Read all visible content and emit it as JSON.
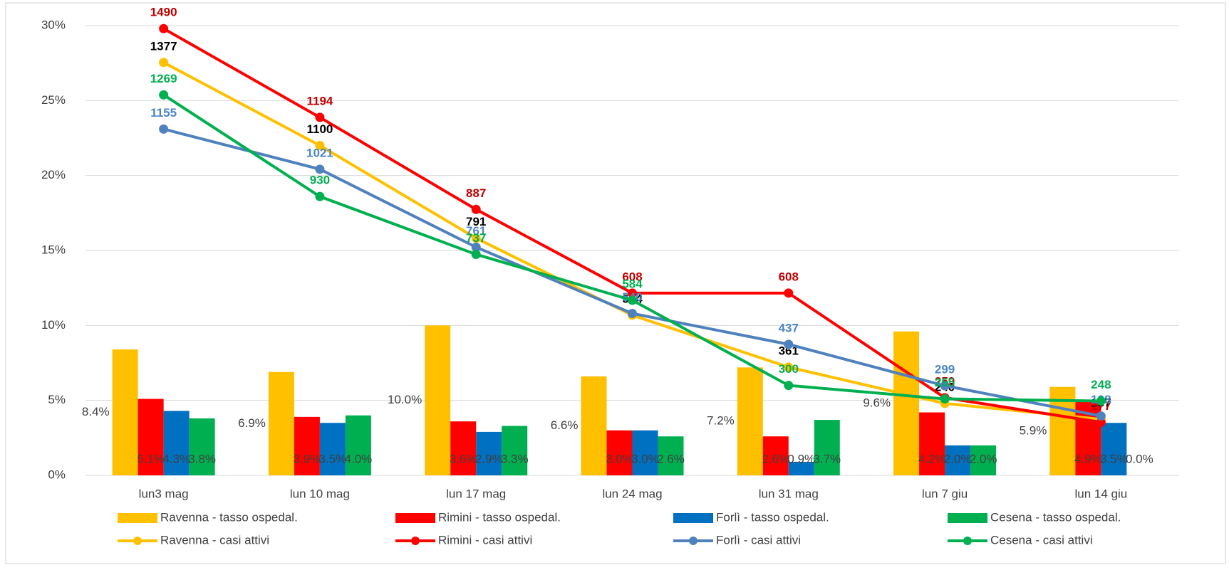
{
  "chart_data": {
    "type": "combo",
    "categories": [
      "lun3 mag",
      "lun 10 mag",
      "lun 17 mag",
      "lun 24 mag",
      "lun 31 mag",
      "lun 7 giu",
      "lun 14 giu"
    ],
    "ylim": [
      0,
      30
    ],
    "yticks": [
      {
        "value": 0,
        "label": "0%"
      },
      {
        "value": 5,
        "label": "5%"
      },
      {
        "value": 10,
        "label": "10%"
      },
      {
        "value": 15,
        "label": "15%"
      },
      {
        "value": 20,
        "label": "20%"
      },
      {
        "value": 25,
        "label": "25%"
      },
      {
        "value": 30,
        "label": "30%"
      }
    ],
    "y2lim": [
      0,
      1500
    ],
    "grid": true,
    "legend": "bottom",
    "series": [
      {
        "name": "Ravenna - tasso ospedal.",
        "type": "bar",
        "color": "#ffc000",
        "values": [
          8.4,
          6.9,
          10.0,
          6.6,
          7.2,
          9.6,
          5.9
        ],
        "value_labels": [
          "8.4%",
          "6.9%",
          "10.0%",
          "6.6%",
          "7.2%",
          "9.6%",
          "5.9%"
        ]
      },
      {
        "name": "Rimini - tasso ospedal.",
        "type": "bar",
        "color": "#ff0000",
        "values": [
          5.1,
          3.9,
          3.6,
          3.0,
          2.6,
          4.2,
          4.9
        ],
        "value_labels": [
          "5.1%",
          "3.9%",
          "3.6%",
          "3.0%",
          "2.6%",
          "4.2%",
          "4.9%"
        ]
      },
      {
        "name": "Forlì - tasso ospedal.",
        "type": "bar",
        "color": "#0070c0",
        "values": [
          4.3,
          3.5,
          2.9,
          3.0,
          0.9,
          2.0,
          3.5
        ],
        "value_labels": [
          "4.3%",
          "3.5%",
          "2.9%",
          "3.0%",
          "0.9%",
          "2.0%",
          "3.5%"
        ]
      },
      {
        "name": "Cesena - tasso ospedal.",
        "type": "bar",
        "color": "#00b050",
        "values": [
          3.8,
          4.0,
          3.3,
          2.6,
          3.7,
          2.0,
          0.0
        ],
        "value_labels": [
          "3.8%",
          "4.0%",
          "3.3%",
          "2.6%",
          "3.7%",
          "2.0%",
          "0.0%"
        ]
      },
      {
        "name": "Ravenna - casi attivi",
        "type": "line",
        "axis": "y2",
        "color": "#ffc000",
        "label_color": "#000000",
        "values": [
          1377,
          1100,
          791,
          534,
          361,
          240,
          187
        ]
      },
      {
        "name": "Rimini - casi attivi",
        "type": "line",
        "axis": "y2",
        "color": "#ff0000",
        "label_color": "#c00000",
        "values": [
          1490,
          1194,
          887,
          608,
          608,
          259,
          177
        ]
      },
      {
        "name": "Forlì - casi attivi",
        "type": "line",
        "axis": "y2",
        "color": "#4f81bd",
        "label_color": "#4a86c5",
        "values": [
          1155,
          1021,
          761,
          540,
          437,
          299,
          198
        ]
      },
      {
        "name": "Cesena - casi attivi",
        "type": "line",
        "axis": "y2",
        "color": "#00b050",
        "label_color": "#00b050",
        "values": [
          1269,
          930,
          737,
          584,
          300,
          255,
          248
        ]
      }
    ]
  }
}
